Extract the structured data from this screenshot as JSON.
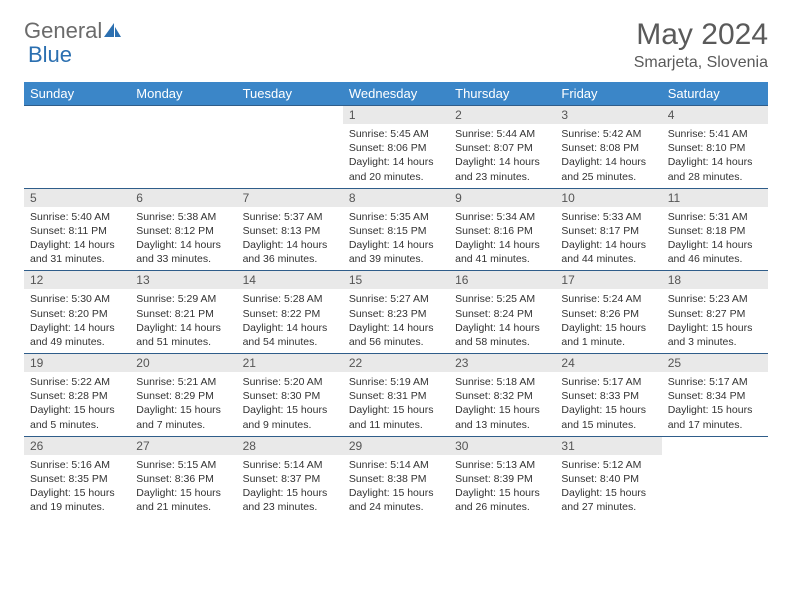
{
  "logo": {
    "part1": "General",
    "part2": "Blue"
  },
  "title": "May 2024",
  "location": "Smarjeta, Slovenia",
  "colors": {
    "header_bg": "#3b86c8",
    "header_text": "#ffffff",
    "daynum_bg": "#e9e9e9",
    "border": "#2f5d8a",
    "logo_gray": "#6b6b6b",
    "logo_blue": "#2b6fb0"
  },
  "fonts": {
    "title_size": 30,
    "location_size": 16,
    "header_size": 13,
    "daynum_size": 12,
    "body_size": 10.5
  },
  "day_headers": [
    "Sunday",
    "Monday",
    "Tuesday",
    "Wednesday",
    "Thursday",
    "Friday",
    "Saturday"
  ],
  "weeks": [
    [
      {
        "num": "",
        "lines": []
      },
      {
        "num": "",
        "lines": []
      },
      {
        "num": "",
        "lines": []
      },
      {
        "num": "1",
        "lines": [
          "Sunrise: 5:45 AM",
          "Sunset: 8:06 PM",
          "Daylight: 14 hours",
          "and 20 minutes."
        ]
      },
      {
        "num": "2",
        "lines": [
          "Sunrise: 5:44 AM",
          "Sunset: 8:07 PM",
          "Daylight: 14 hours",
          "and 23 minutes."
        ]
      },
      {
        "num": "3",
        "lines": [
          "Sunrise: 5:42 AM",
          "Sunset: 8:08 PM",
          "Daylight: 14 hours",
          "and 25 minutes."
        ]
      },
      {
        "num": "4",
        "lines": [
          "Sunrise: 5:41 AM",
          "Sunset: 8:10 PM",
          "Daylight: 14 hours",
          "and 28 minutes."
        ]
      }
    ],
    [
      {
        "num": "5",
        "lines": [
          "Sunrise: 5:40 AM",
          "Sunset: 8:11 PM",
          "Daylight: 14 hours",
          "and 31 minutes."
        ]
      },
      {
        "num": "6",
        "lines": [
          "Sunrise: 5:38 AM",
          "Sunset: 8:12 PM",
          "Daylight: 14 hours",
          "and 33 minutes."
        ]
      },
      {
        "num": "7",
        "lines": [
          "Sunrise: 5:37 AM",
          "Sunset: 8:13 PM",
          "Daylight: 14 hours",
          "and 36 minutes."
        ]
      },
      {
        "num": "8",
        "lines": [
          "Sunrise: 5:35 AM",
          "Sunset: 8:15 PM",
          "Daylight: 14 hours",
          "and 39 minutes."
        ]
      },
      {
        "num": "9",
        "lines": [
          "Sunrise: 5:34 AM",
          "Sunset: 8:16 PM",
          "Daylight: 14 hours",
          "and 41 minutes."
        ]
      },
      {
        "num": "10",
        "lines": [
          "Sunrise: 5:33 AM",
          "Sunset: 8:17 PM",
          "Daylight: 14 hours",
          "and 44 minutes."
        ]
      },
      {
        "num": "11",
        "lines": [
          "Sunrise: 5:31 AM",
          "Sunset: 8:18 PM",
          "Daylight: 14 hours",
          "and 46 minutes."
        ]
      }
    ],
    [
      {
        "num": "12",
        "lines": [
          "Sunrise: 5:30 AM",
          "Sunset: 8:20 PM",
          "Daylight: 14 hours",
          "and 49 minutes."
        ]
      },
      {
        "num": "13",
        "lines": [
          "Sunrise: 5:29 AM",
          "Sunset: 8:21 PM",
          "Daylight: 14 hours",
          "and 51 minutes."
        ]
      },
      {
        "num": "14",
        "lines": [
          "Sunrise: 5:28 AM",
          "Sunset: 8:22 PM",
          "Daylight: 14 hours",
          "and 54 minutes."
        ]
      },
      {
        "num": "15",
        "lines": [
          "Sunrise: 5:27 AM",
          "Sunset: 8:23 PM",
          "Daylight: 14 hours",
          "and 56 minutes."
        ]
      },
      {
        "num": "16",
        "lines": [
          "Sunrise: 5:25 AM",
          "Sunset: 8:24 PM",
          "Daylight: 14 hours",
          "and 58 minutes."
        ]
      },
      {
        "num": "17",
        "lines": [
          "Sunrise: 5:24 AM",
          "Sunset: 8:26 PM",
          "Daylight: 15 hours",
          "and 1 minute."
        ]
      },
      {
        "num": "18",
        "lines": [
          "Sunrise: 5:23 AM",
          "Sunset: 8:27 PM",
          "Daylight: 15 hours",
          "and 3 minutes."
        ]
      }
    ],
    [
      {
        "num": "19",
        "lines": [
          "Sunrise: 5:22 AM",
          "Sunset: 8:28 PM",
          "Daylight: 15 hours",
          "and 5 minutes."
        ]
      },
      {
        "num": "20",
        "lines": [
          "Sunrise: 5:21 AM",
          "Sunset: 8:29 PM",
          "Daylight: 15 hours",
          "and 7 minutes."
        ]
      },
      {
        "num": "21",
        "lines": [
          "Sunrise: 5:20 AM",
          "Sunset: 8:30 PM",
          "Daylight: 15 hours",
          "and 9 minutes."
        ]
      },
      {
        "num": "22",
        "lines": [
          "Sunrise: 5:19 AM",
          "Sunset: 8:31 PM",
          "Daylight: 15 hours",
          "and 11 minutes."
        ]
      },
      {
        "num": "23",
        "lines": [
          "Sunrise: 5:18 AM",
          "Sunset: 8:32 PM",
          "Daylight: 15 hours",
          "and 13 minutes."
        ]
      },
      {
        "num": "24",
        "lines": [
          "Sunrise: 5:17 AM",
          "Sunset: 8:33 PM",
          "Daylight: 15 hours",
          "and 15 minutes."
        ]
      },
      {
        "num": "25",
        "lines": [
          "Sunrise: 5:17 AM",
          "Sunset: 8:34 PM",
          "Daylight: 15 hours",
          "and 17 minutes."
        ]
      }
    ],
    [
      {
        "num": "26",
        "lines": [
          "Sunrise: 5:16 AM",
          "Sunset: 8:35 PM",
          "Daylight: 15 hours",
          "and 19 minutes."
        ]
      },
      {
        "num": "27",
        "lines": [
          "Sunrise: 5:15 AM",
          "Sunset: 8:36 PM",
          "Daylight: 15 hours",
          "and 21 minutes."
        ]
      },
      {
        "num": "28",
        "lines": [
          "Sunrise: 5:14 AM",
          "Sunset: 8:37 PM",
          "Daylight: 15 hours",
          "and 23 minutes."
        ]
      },
      {
        "num": "29",
        "lines": [
          "Sunrise: 5:14 AM",
          "Sunset: 8:38 PM",
          "Daylight: 15 hours",
          "and 24 minutes."
        ]
      },
      {
        "num": "30",
        "lines": [
          "Sunrise: 5:13 AM",
          "Sunset: 8:39 PM",
          "Daylight: 15 hours",
          "and 26 minutes."
        ]
      },
      {
        "num": "31",
        "lines": [
          "Sunrise: 5:12 AM",
          "Sunset: 8:40 PM",
          "Daylight: 15 hours",
          "and 27 minutes."
        ]
      },
      {
        "num": "",
        "lines": []
      }
    ]
  ]
}
